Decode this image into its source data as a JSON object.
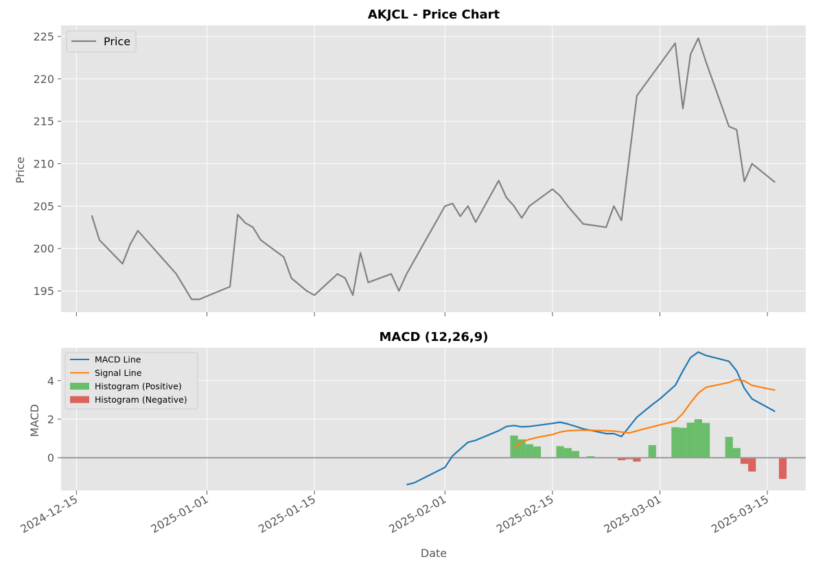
{
  "chart_data": [
    {
      "type": "line",
      "title": "AKJCL - Price Chart",
      "xlabel": "",
      "ylabel": "Price",
      "ylim": [
        192.5,
        226.3
      ],
      "yticks": [
        "195",
        "200",
        "205",
        "210",
        "215",
        "220",
        "225"
      ],
      "grid": true,
      "legend": "top-left",
      "series": [
        {
          "name": "Price",
          "color": "#808080",
          "x": [
            "2024-12-17",
            "2024-12-18",
            "2024-12-21",
            "2024-12-22",
            "2024-12-23",
            "2024-12-28",
            "2024-12-30",
            "2024-12-31",
            "2025-01-04",
            "2025-01-05",
            "2025-01-06",
            "2025-01-07",
            "2025-01-08",
            "2025-01-11",
            "2025-01-12",
            "2025-01-14",
            "2025-01-15",
            "2025-01-18",
            "2025-01-19",
            "2025-01-20",
            "2025-01-21",
            "2025-01-22",
            "2025-01-25",
            "2025-01-26",
            "2025-01-27",
            "2025-02-01",
            "2025-02-02",
            "2025-02-03",
            "2025-02-04",
            "2025-02-05",
            "2025-02-08",
            "2025-02-09",
            "2025-02-10",
            "2025-02-11",
            "2025-02-12",
            "2025-02-15",
            "2025-02-16",
            "2025-02-17",
            "2025-02-19",
            "2025-02-22",
            "2025-02-23",
            "2025-02-24",
            "2025-02-26",
            "2025-03-03",
            "2025-03-04",
            "2025-03-05",
            "2025-03-06",
            "2025-03-07",
            "2025-03-10",
            "2025-03-11",
            "2025-03-12",
            "2025-03-13",
            "2025-03-16"
          ],
          "y": [
            203.9,
            201.0,
            198.2,
            200.5,
            202.1,
            197.0,
            194.0,
            194.0,
            195.5,
            204.0,
            203.0,
            202.5,
            201.0,
            199.0,
            196.5,
            195.0,
            194.5,
            197.0,
            196.5,
            194.5,
            199.5,
            196.0,
            197.0,
            195.0,
            197.0,
            205.0,
            205.3,
            203.8,
            205.0,
            203.1,
            208.0,
            206.0,
            205.0,
            203.6,
            205.0,
            207.0,
            206.2,
            205.0,
            202.9,
            202.5,
            205.0,
            203.3,
            218.0,
            224.2,
            216.5,
            222.9,
            224.8,
            222.0,
            214.4,
            214.0,
            207.9,
            210.0,
            207.8
          ]
        }
      ]
    },
    {
      "type": "line",
      "title": "MACD (12,26,9)",
      "xlabel": "Date",
      "ylabel": "MACD",
      "ylim": [
        -1.7,
        5.7
      ],
      "yticks": [
        "0",
        "2",
        "4"
      ],
      "xticks": [
        "2024-12-15",
        "2025-01-01",
        "2025-01-15",
        "2025-02-01",
        "2025-02-15",
        "2025-03-01",
        "2025-03-15"
      ],
      "grid": true,
      "legend": "top-left",
      "series": [
        {
          "name": "MACD Line",
          "color": "#1f77b4",
          "x": [
            "2025-01-27",
            "2025-01-28",
            "2025-02-01",
            "2025-02-02",
            "2025-02-03",
            "2025-02-04",
            "2025-02-05",
            "2025-02-08",
            "2025-02-09",
            "2025-02-10",
            "2025-02-11",
            "2025-02-12",
            "2025-02-15",
            "2025-02-16",
            "2025-02-17",
            "2025-02-19",
            "2025-02-22",
            "2025-02-23",
            "2025-02-24",
            "2025-02-26",
            "2025-02-28",
            "2025-03-01",
            "2025-03-02",
            "2025-03-03",
            "2025-03-04",
            "2025-03-05",
            "2025-03-06",
            "2025-03-07",
            "2025-03-10",
            "2025-03-11",
            "2025-03-12",
            "2025-03-13",
            "2025-03-16"
          ],
          "y": [
            -1.4,
            -1.3,
            -0.5,
            0.1,
            0.45,
            0.8,
            0.9,
            1.4,
            1.62,
            1.67,
            1.6,
            1.62,
            1.78,
            1.84,
            1.75,
            1.5,
            1.25,
            1.25,
            1.1,
            2.1,
            2.75,
            3.05,
            3.4,
            3.75,
            4.5,
            5.2,
            5.48,
            5.3,
            5.0,
            4.5,
            3.6,
            3.05,
            2.4
          ]
        },
        {
          "name": "Signal Line",
          "color": "#ff7f0e",
          "x": [
            "2025-02-10",
            "2025-02-11",
            "2025-02-12",
            "2025-02-13",
            "2025-02-15",
            "2025-02-16",
            "2025-02-17",
            "2025-02-19",
            "2025-02-22",
            "2025-02-23",
            "2025-02-24",
            "2025-02-25",
            "2025-02-27",
            "2025-03-03",
            "2025-03-04",
            "2025-03-05",
            "2025-03-06",
            "2025-03-07",
            "2025-03-10",
            "2025-03-11",
            "2025-03-12",
            "2025-03-13",
            "2025-03-16"
          ],
          "y": [
            0.5,
            0.82,
            0.95,
            1.05,
            1.2,
            1.33,
            1.4,
            1.43,
            1.4,
            1.38,
            1.33,
            1.28,
            1.5,
            1.9,
            2.3,
            2.85,
            3.35,
            3.65,
            3.9,
            4.05,
            3.98,
            3.75,
            3.5
          ]
        }
      ],
      "histogram": [
        {
          "name": "Histogram (Positive)",
          "color": "#5cb85c",
          "x": [
            "2025-02-10",
            "2025-02-11",
            "2025-02-12",
            "2025-02-13",
            "2025-02-16",
            "2025-02-17",
            "2025-02-18",
            "2025-02-20",
            "2025-02-28",
            "2025-03-03",
            "2025-03-04",
            "2025-03-05",
            "2025-03-06",
            "2025-03-07",
            "2025-03-10",
            "2025-03-11"
          ],
          "y": [
            1.15,
            0.95,
            0.7,
            0.58,
            0.6,
            0.5,
            0.35,
            0.08,
            0.65,
            1.58,
            1.55,
            1.82,
            2.0,
            1.8,
            1.08,
            0.5
          ]
        },
        {
          "name": "Histogram (Negative)",
          "color": "#d9534f",
          "x": [
            "2025-02-24",
            "2025-02-25",
            "2025-02-26",
            "2025-03-12",
            "2025-03-13",
            "2025-03-17"
          ],
          "y": [
            -0.13,
            -0.08,
            -0.2,
            -0.32,
            -0.72,
            -1.1
          ]
        }
      ]
    }
  ]
}
